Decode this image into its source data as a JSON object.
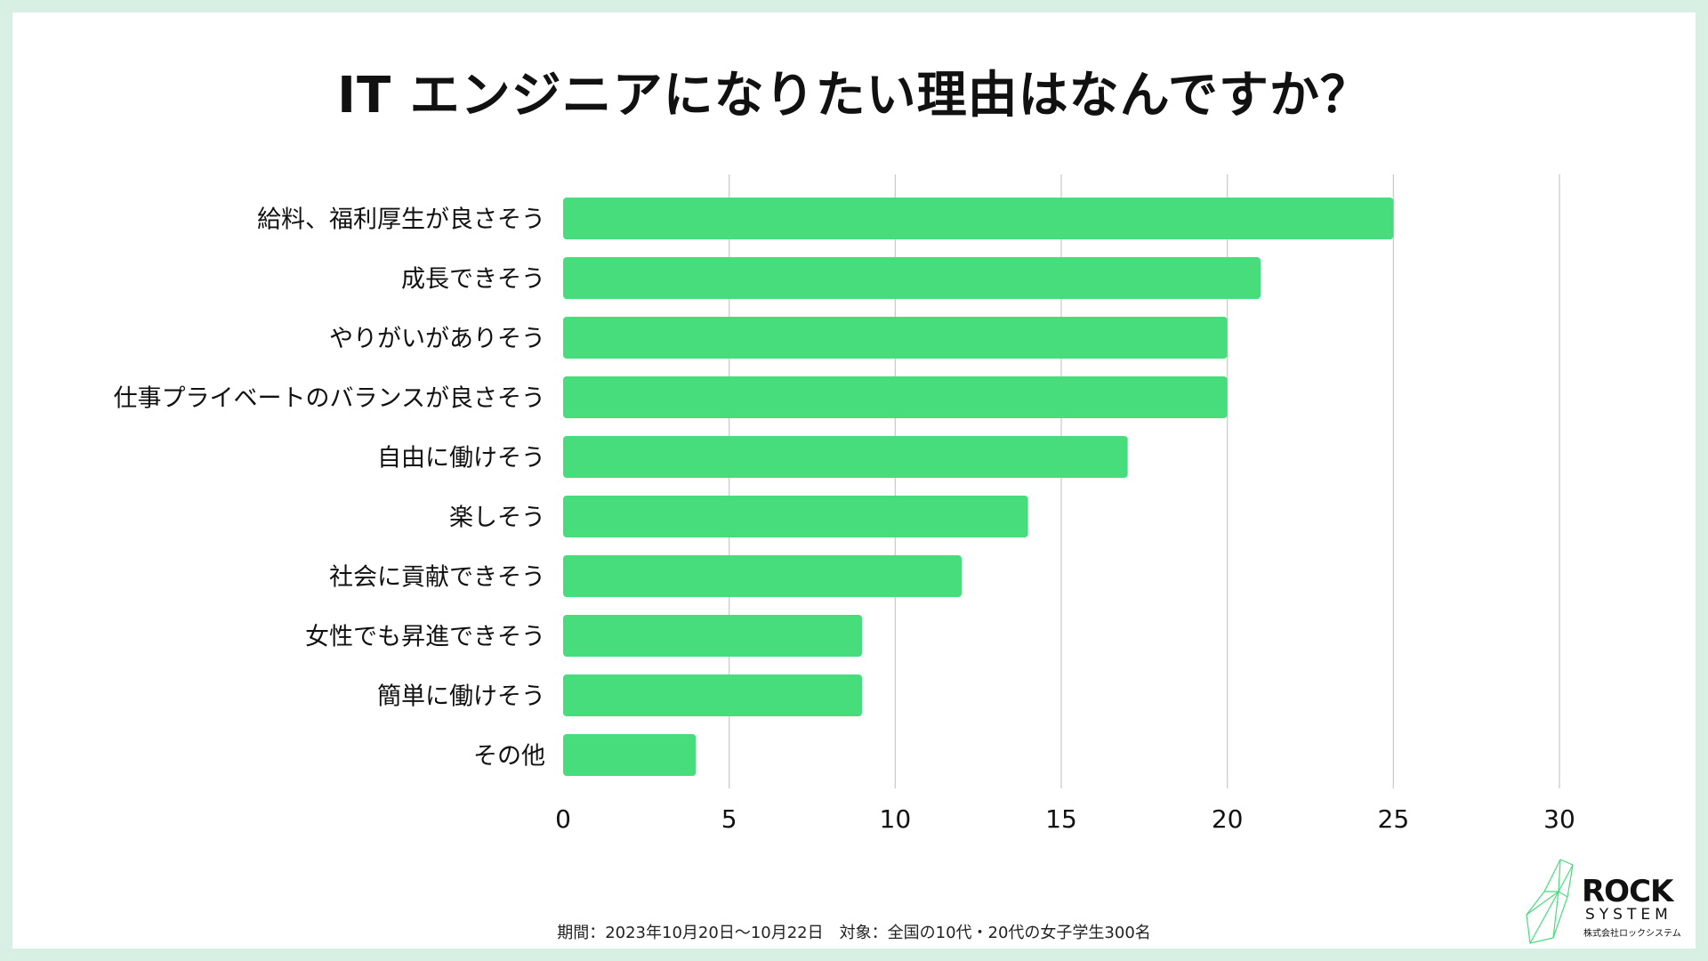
{
  "chart_data": {
    "type": "bar",
    "orientation": "horizontal",
    "title": "IT エンジニアになりたい理由はなんですか？",
    "categories": [
      "給料、福利厚生が良さそう",
      "成長できそう",
      "やりがいがありそう",
      "仕事プライベートのバランスが良さそう",
      "自由に働けそう",
      "楽しそう",
      "社会に貢献できそう",
      "女性でも昇進できそう",
      "簡単に働けそう",
      "その他"
    ],
    "values": [
      25,
      21,
      20,
      20,
      17,
      14,
      12,
      9,
      9,
      4
    ],
    "xlim": [
      0,
      30
    ],
    "x_ticks": [
      0,
      5,
      10,
      15,
      20,
      25,
      30
    ],
    "xlabel": "",
    "ylabel": "",
    "grid": "vertical",
    "bar_color": "#47dc7c"
  },
  "footnote": "期間：2023年10月20日〜10月22日　対象：全国の10代・20代の女子学生300名",
  "logo": {
    "name": "ROCK",
    "sub": "SYSTEM",
    "company": "株式会社ロックシステム",
    "accent_color": "#47dc7c"
  }
}
